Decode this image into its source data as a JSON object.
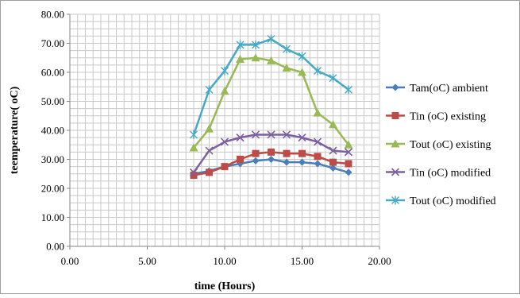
{
  "chart_data": {
    "type": "line",
    "xlabel": "time (Hours)",
    "ylabel": "teemperature( oC)",
    "xlim": [
      0,
      20
    ],
    "ylim": [
      0,
      80
    ],
    "x_ticks": [
      "0.00",
      "5.00",
      "10.00",
      "15.00",
      "20.00"
    ],
    "y_ticks": [
      "0.00",
      "10.00",
      "20.00",
      "30.00",
      "40.00",
      "50.00",
      "60.00",
      "70.00",
      "80.00"
    ],
    "grid": true,
    "legend_position": "right",
    "x": [
      8,
      9,
      10,
      11,
      12,
      13,
      14,
      15,
      16,
      17,
      18
    ],
    "series": [
      {
        "name": "Tam(oC) ambient",
        "color": "#4a7ebb",
        "marker": "diamond",
        "values": [
          25.0,
          26.0,
          27.5,
          28.5,
          29.5,
          30.0,
          29.0,
          29.0,
          28.5,
          27.0,
          25.5
        ]
      },
      {
        "name": "Tin (oC) existing",
        "color": "#be4b48",
        "marker": "square",
        "values": [
          24.5,
          25.5,
          27.5,
          30.0,
          32.0,
          32.5,
          32.0,
          32.0,
          31.0,
          29.0,
          28.5
        ]
      },
      {
        "name": "Tout (oC) existing",
        "color": "#98b954",
        "marker": "triangle",
        "values": [
          34.0,
          40.5,
          53.5,
          64.5,
          65.0,
          64.0,
          61.5,
          60.0,
          46.0,
          42.0,
          35.0
        ]
      },
      {
        "name": "Tin (oC) modified",
        "color": "#7d60a0",
        "marker": "x",
        "values": [
          25.5,
          33.0,
          36.0,
          37.5,
          38.5,
          38.5,
          38.5,
          37.5,
          36.0,
          33.0,
          32.5
        ]
      },
      {
        "name": "Tout (oC) modified",
        "color": "#46aac5",
        "marker": "star",
        "values": [
          38.5,
          54.0,
          60.5,
          69.5,
          69.5,
          71.5,
          68.0,
          65.5,
          60.5,
          58.0,
          54.0
        ]
      }
    ]
  }
}
